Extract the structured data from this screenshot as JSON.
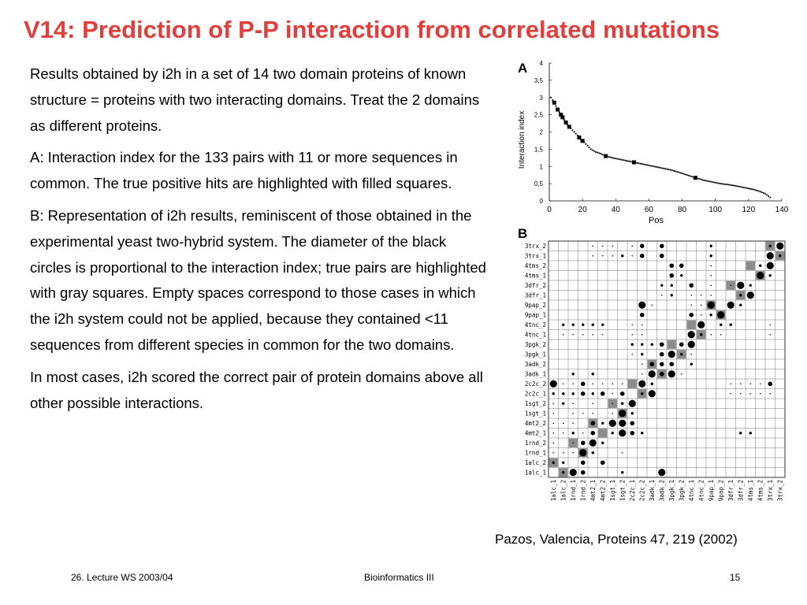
{
  "title": "V14: Prediction of P-P interaction from correlated mutations",
  "paragraphs": [
    {
      "lead": "",
      "text": "Results obtained by i2h in a set of 14 two domain proteins of known structure = proteins with two interacting domains. Treat the 2 domains as different proteins."
    },
    {
      "lead": "A:",
      "text": " Interaction index for the 133 pairs with 11 or more sequences in common. The true positive hits are highlighted with filled squares."
    },
    {
      "lead": "B:",
      "text": " Representation of i2h results, reminiscent of those obtained in the experimental yeast two-hybrid system. The diameter of the black circles is proportional to the interaction index; true pairs are highlighted with gray squares. Empty spaces correspond to those cases in which the i2h system could not be applied, because they contained <11 sequences from different species in common for the two domains."
    },
    {
      "lead": "",
      "text": "In most cases, i2h scored the correct pair of protein domains above all other possible interactions."
    }
  ],
  "chart_data": [
    {
      "type": "scatter",
      "panel_label": "A",
      "xlabel": "Pos",
      "ylabel": "Interaction index",
      "xlim": [
        0,
        140
      ],
      "ylim": [
        0,
        4
      ],
      "xticks": [
        "0",
        "20",
        "40",
        "60",
        "80",
        "100",
        "120",
        "140"
      ],
      "yticks": [
        "0",
        "0,5",
        "1",
        "1,5",
        "2",
        "2,5",
        "3",
        "3,5",
        "4"
      ],
      "true_positive_positions": [
        3,
        5,
        7,
        8,
        10,
        12,
        18,
        20,
        34,
        51,
        88
      ],
      "curve": [
        [
          1,
          3.0
        ],
        [
          3,
          2.85
        ],
        [
          5,
          2.65
        ],
        [
          7,
          2.5
        ],
        [
          9,
          2.35
        ],
        [
          11,
          2.2
        ],
        [
          13,
          2.1
        ],
        [
          15,
          2.0
        ],
        [
          17,
          1.9
        ],
        [
          19,
          1.78
        ],
        [
          21,
          1.7
        ],
        [
          23,
          1.6
        ],
        [
          25,
          1.5
        ],
        [
          28,
          1.42
        ],
        [
          31,
          1.37
        ],
        [
          34,
          1.3
        ],
        [
          38,
          1.25
        ],
        [
          43,
          1.2
        ],
        [
          48,
          1.15
        ],
        [
          53,
          1.1
        ],
        [
          58,
          1.05
        ],
        [
          63,
          1.0
        ],
        [
          68,
          0.95
        ],
        [
          73,
          0.9
        ],
        [
          78,
          0.83
        ],
        [
          83,
          0.75
        ],
        [
          88,
          0.67
        ],
        [
          93,
          0.6
        ],
        [
          98,
          0.55
        ],
        [
          103,
          0.5
        ],
        [
          108,
          0.47
        ],
        [
          113,
          0.43
        ],
        [
          118,
          0.38
        ],
        [
          123,
          0.33
        ],
        [
          127,
          0.27
        ],
        [
          130,
          0.21
        ],
        [
          133,
          0.1
        ]
      ]
    },
    {
      "type": "heatmap",
      "panel_label": "B",
      "rows": [
        "3trx_2",
        "3trx_1",
        "4tms_2",
        "4tms_1",
        "3dfr_2",
        "3dfr_1",
        "9pap_2",
        "9pap_1",
        "4tnc_2",
        "4tnc_1",
        "3pgk_2",
        "3pgk_1",
        "3adk_2",
        "3adk_1",
        "2c2c_2",
        "2c2c_1",
        "1sgt_2",
        "1sgt_1",
        "4mt2_2",
        "4mt2_1",
        "1rnd_2",
        "1rnd_1",
        "1alc_2",
        "1alc_1"
      ],
      "columns": [
        "1alc_1",
        "1alc_2",
        "1rnd_1",
        "1rnd_2",
        "4mt2_1",
        "4mt2_2",
        "1sgt_1",
        "1sgt_2",
        "2c2c_1",
        "2c2c_2",
        "3adk_1",
        "3adk_2",
        "3pgk_1",
        "3pgk_2",
        "4tnc_1",
        "4tnc_2",
        "9pap_1",
        "9pap_2",
        "3dfr_1",
        "3dfr_2",
        "4tms_1",
        "4tms_2",
        "3trx_1",
        "3trx_2"
      ],
      "cell_size_scale": [
        0,
        1,
        2,
        3,
        4
      ],
      "rows_data": [
        "000011101303000020000024",
        "000011121303000020000042",
        "000000000000330010000240",
        "000000000000320010000420",
        "000000000002203010142000",
        "000000000001201110024000",
        "000000000410001140420000",
        "000000000300003124000000",
        "022222001100000402200010",
        "011111001100004211000010",
        "000000002223034000000000",
        "000000001203421000000000",
        "000000000133302000000000",
        "002020000143410000000000",
        "411311110420000000111130",
        "222323130240000000111110",
        "121010124000000000000000",
        "101110142000000000000000",
        "111032443000000000000000",
        "112130243200000000022000",
        "101342000000000000000000",
        "111420010000000000000000",
        "220303000000000000000000",
        "024300020004000000000000"
      ]
    }
  ],
  "citation": "Pazos, Valencia, Proteins 47, 219 (2002)",
  "footer": {
    "left": "26. Lecture WS 2003/04",
    "center": "Bioinformatics III",
    "right": "15"
  }
}
